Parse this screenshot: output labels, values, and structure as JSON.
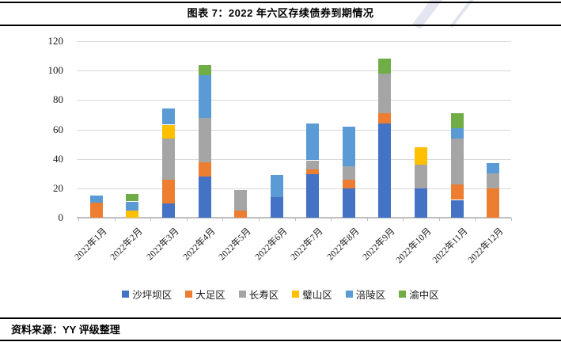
{
  "header": {
    "title": "图表 7：2022 年六区存续债券到期情况"
  },
  "footer": {
    "source": "资料来源：YY 评级整理"
  },
  "chart_data": {
    "type": "bar",
    "stacked": true,
    "title": "图表 7：2022 年六区存续债券到期情况",
    "categories": [
      "2022年1月",
      "2022年2月",
      "2022年3月",
      "2022年4月",
      "2022年5月",
      "2022年6月",
      "2022年7月",
      "2022年8月",
      "2022年9月",
      "2022年10月",
      "2022年11月",
      "2022年12月"
    ],
    "series": [
      {
        "name": "沙坪坝区",
        "color": "#4472C4",
        "values": [
          0,
          0,
          10,
          28,
          0,
          14,
          30,
          20,
          64,
          20,
          12,
          0
        ]
      },
      {
        "name": "大足区",
        "color": "#ED7D31",
        "values": [
          10,
          0,
          16,
          10,
          5,
          0,
          3,
          6,
          7,
          0,
          11,
          20
        ]
      },
      {
        "name": "长寿区",
        "color": "#A5A5A5",
        "values": [
          0,
          0,
          28,
          30,
          14,
          0,
          6,
          9,
          27,
          16,
          31,
          10
        ]
      },
      {
        "name": "璧山区",
        "color": "#FFC000",
        "values": [
          0,
          5,
          9,
          0,
          0,
          0,
          0,
          0,
          0,
          12,
          0,
          0
        ]
      },
      {
        "name": "涪陵区",
        "color": "#5B9BD5",
        "values": [
          5,
          6,
          11,
          29,
          0,
          15,
          25,
          27,
          0,
          0,
          7,
          7
        ]
      },
      {
        "name": "渝中区",
        "color": "#70AD47",
        "values": [
          0,
          5,
          0,
          7,
          0,
          0,
          0,
          0,
          10,
          0,
          10,
          0
        ]
      }
    ],
    "ylim": [
      0,
      120
    ],
    "ytick_step": 20,
    "ytick_labels": [
      "0",
      "20",
      "40",
      "60",
      "80",
      "100",
      "120"
    ],
    "grid": true,
    "legend_position": "bottom",
    "xlabel": "",
    "ylabel": ""
  },
  "colors": {
    "gridline": "#d9d9d9",
    "axis": "#bfbfbf",
    "rule": "#000000",
    "watermark": "#c9cfe2"
  }
}
